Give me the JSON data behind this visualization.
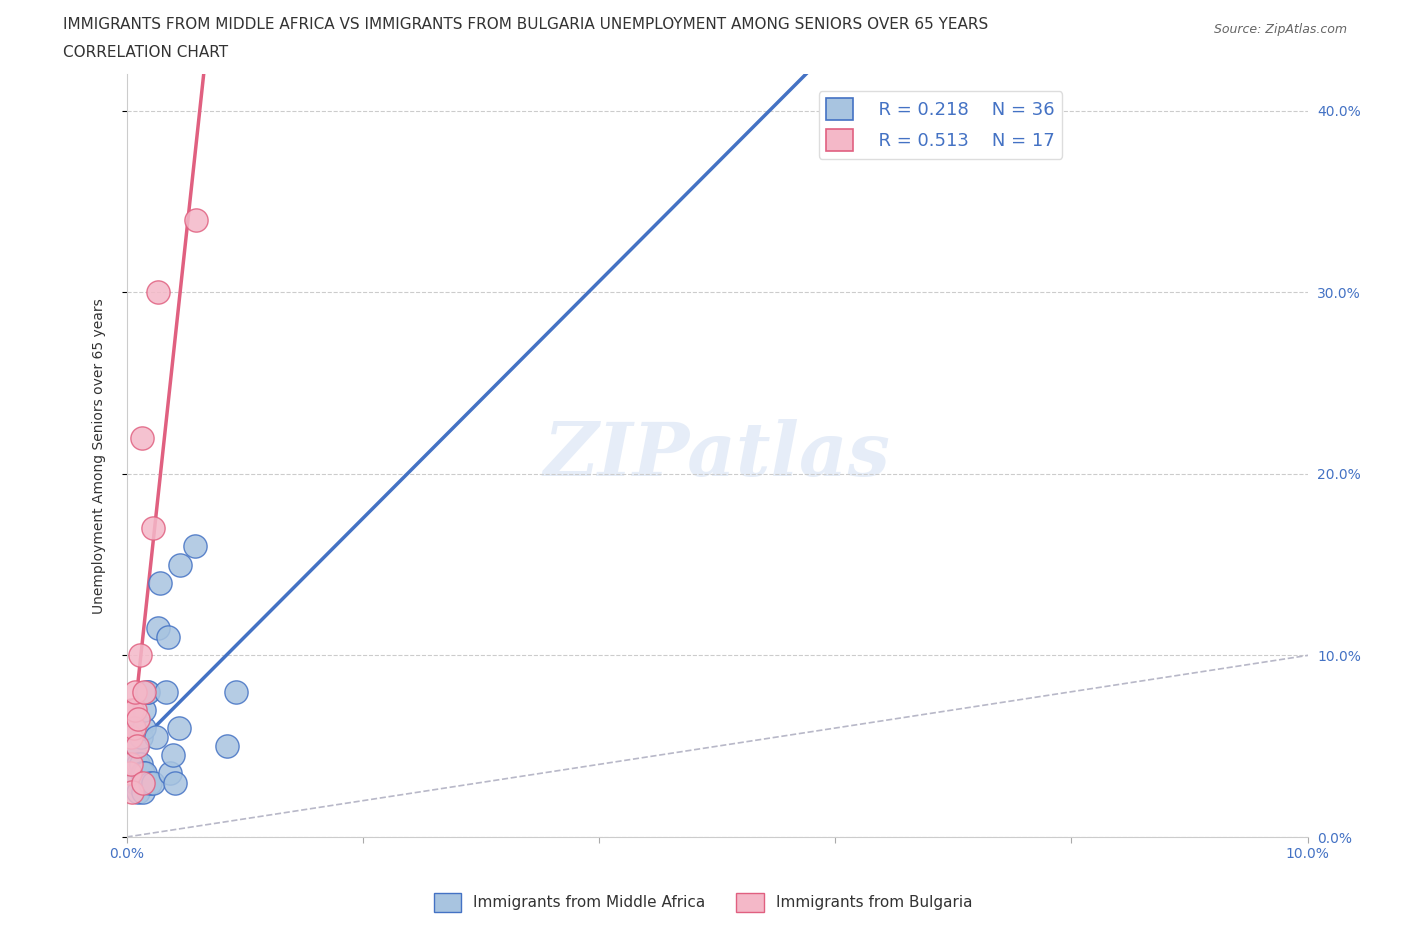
{
  "title_line1": "IMMIGRANTS FROM MIDDLE AFRICA VS IMMIGRANTS FROM BULGARIA UNEMPLOYMENT AMONG SENIORS OVER 65 YEARS",
  "title_line2": "CORRELATION CHART",
  "source": "Source: ZipAtlas.com",
  "ylabel": "Unemployment Among Seniors over 65 years",
  "legend1_label": "Immigrants from Middle Africa",
  "legend2_label": "Immigrants from Bulgaria",
  "legend1_R": "0.218",
  "legend1_N": "36",
  "legend2_R": "0.513",
  "legend2_N": "17",
  "color_blue": "#a8c4e0",
  "color_pink": "#f4b8c8",
  "line_blue": "#4472c4",
  "line_pink": "#e06080",
  "diag_color": "#b8b8c8",
  "watermark_text": "ZIPatlas",
  "xlim": [
    0.0,
    0.1
  ],
  "ylim": [
    0.0,
    0.42
  ],
  "xtick_vals": [
    0.0,
    0.1
  ],
  "ytick_vals": [
    0.0,
    0.1,
    0.2,
    0.3,
    0.4
  ],
  "middle_africa_x": [
    0.0005,
    0.0005,
    0.0006,
    0.0006,
    0.0007,
    0.0007,
    0.0008,
    0.0008,
    0.0009,
    0.001,
    0.001,
    0.0012,
    0.0012,
    0.0013,
    0.0014,
    0.0014,
    0.0015,
    0.0015,
    0.0016,
    0.0017,
    0.0018,
    0.002,
    0.0022,
    0.0025,
    0.0027,
    0.0028,
    0.0033,
    0.0035,
    0.0037,
    0.0039,
    0.0041,
    0.0044,
    0.0045,
    0.0058,
    0.0085,
    0.0093
  ],
  "middle_africa_y": [
    0.045,
    0.06,
    0.05,
    0.055,
    0.04,
    0.045,
    0.03,
    0.055,
    0.05,
    0.025,
    0.04,
    0.04,
    0.055,
    0.035,
    0.035,
    0.025,
    0.06,
    0.07,
    0.035,
    0.08,
    0.08,
    0.03,
    0.03,
    0.055,
    0.115,
    0.14,
    0.08,
    0.11,
    0.035,
    0.045,
    0.03,
    0.06,
    0.15,
    0.16,
    0.05,
    0.08
  ],
  "bulgaria_x": [
    0.0003,
    0.0004,
    0.0004,
    0.0005,
    0.0005,
    0.0006,
    0.0007,
    0.0007,
    0.0009,
    0.001,
    0.0011,
    0.0013,
    0.0014,
    0.0015,
    0.0022,
    0.0027,
    0.0059
  ],
  "bulgaria_y": [
    0.035,
    0.04,
    0.055,
    0.025,
    0.07,
    0.06,
    0.07,
    0.08,
    0.05,
    0.065,
    0.1,
    0.22,
    0.03,
    0.08,
    0.17,
    0.3,
    0.34
  ]
}
